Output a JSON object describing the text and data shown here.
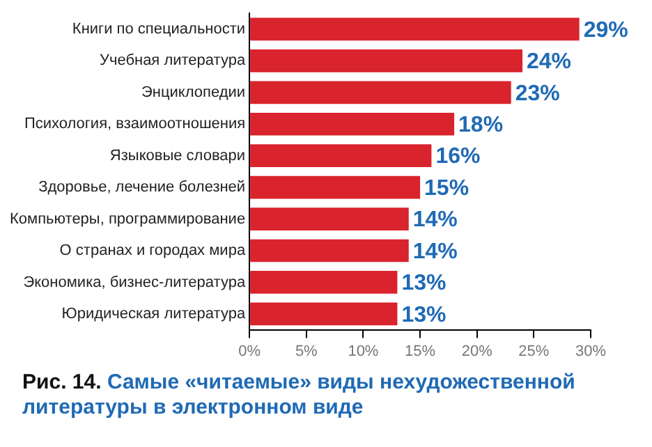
{
  "chart_data": {
    "type": "bar",
    "orientation": "horizontal",
    "title": "Самые «читаемые» виды нехудожественной литературы в электронном виде",
    "annotations": [
      "Рис. 14."
    ],
    "categories": [
      "Книги по специальности",
      "Учебная литература",
      "Энциклопедии",
      "Психология, взаимоотношения",
      "Языковые словари",
      "Здоровье, лечение болезней",
      "Компьютеры, программирование",
      "О странах и городах мира",
      "Экономика, бизнес-литература",
      "Юридическая литература"
    ],
    "values": [
      29,
      24,
      23,
      18,
      16,
      15,
      14,
      14,
      13,
      13
    ],
    "value_labels": [
      "29%",
      "24%",
      "23%",
      "18%",
      "16%",
      "15%",
      "14%",
      "14%",
      "13%",
      "13%"
    ],
    "color": "#d9232d",
    "xlim": [
      0,
      30
    ],
    "xticks": [
      {
        "value": 0,
        "label": "0%"
      },
      {
        "value": 5,
        "label": "5%"
      },
      {
        "value": 10,
        "label": "10%"
      },
      {
        "value": 15,
        "label": "15%"
      },
      {
        "value": 20,
        "label": "20%"
      },
      {
        "value": 25,
        "label": "25%"
      },
      {
        "value": 30,
        "label": "30%"
      }
    ],
    "grid": false,
    "legend": false
  }
}
